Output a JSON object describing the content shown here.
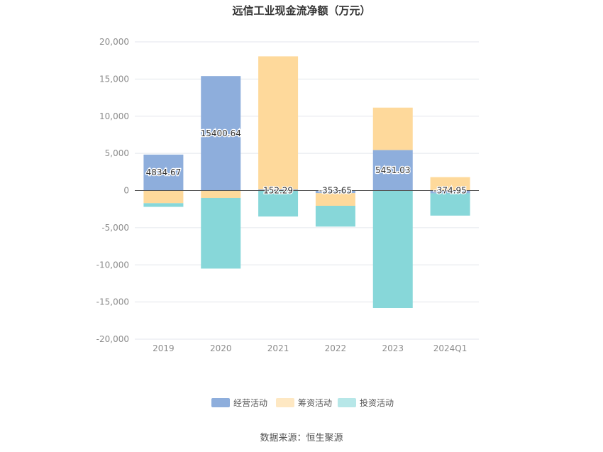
{
  "chart_data": {
    "type": "bar",
    "stacked": true,
    "title": "远信工业现金流净额（万元）",
    "source": "数据来源：恒生聚源",
    "categories": [
      "2019",
      "2020",
      "2021",
      "2022",
      "2023",
      "2024Q1"
    ],
    "ylim": [
      -20000,
      20000
    ],
    "yticks": [
      20000,
      15000,
      10000,
      5000,
      0,
      -5000,
      -10000,
      -15000,
      -20000
    ],
    "ytick_labels": [
      "20,000",
      "15,000",
      "10,000",
      "5,000",
      "0",
      "-5,000",
      "-10,000",
      "-15,000",
      "-20,000"
    ],
    "grid": true,
    "legend_position": "bottom",
    "series": [
      {
        "name": "经营活动",
        "color": "#8eaedc",
        "values": [
          4834.67,
          15400.64,
          152.29,
          -353.65,
          5451.03,
          -374.95
        ]
      },
      {
        "name": "筹资活动",
        "color": "#fed99b",
        "values": [
          -1700,
          -1000,
          17900,
          -1700,
          5700,
          1800
        ]
      },
      {
        "name": "投资活动",
        "color": "#87d7d9",
        "values": [
          -500,
          -9500,
          -3500,
          -2800,
          -15800,
          -3000
        ]
      }
    ],
    "data_labels": [
      "4834.67",
      "15400.64",
      "152.29",
      "-353.65",
      "5451.03",
      "-374.95"
    ]
  }
}
